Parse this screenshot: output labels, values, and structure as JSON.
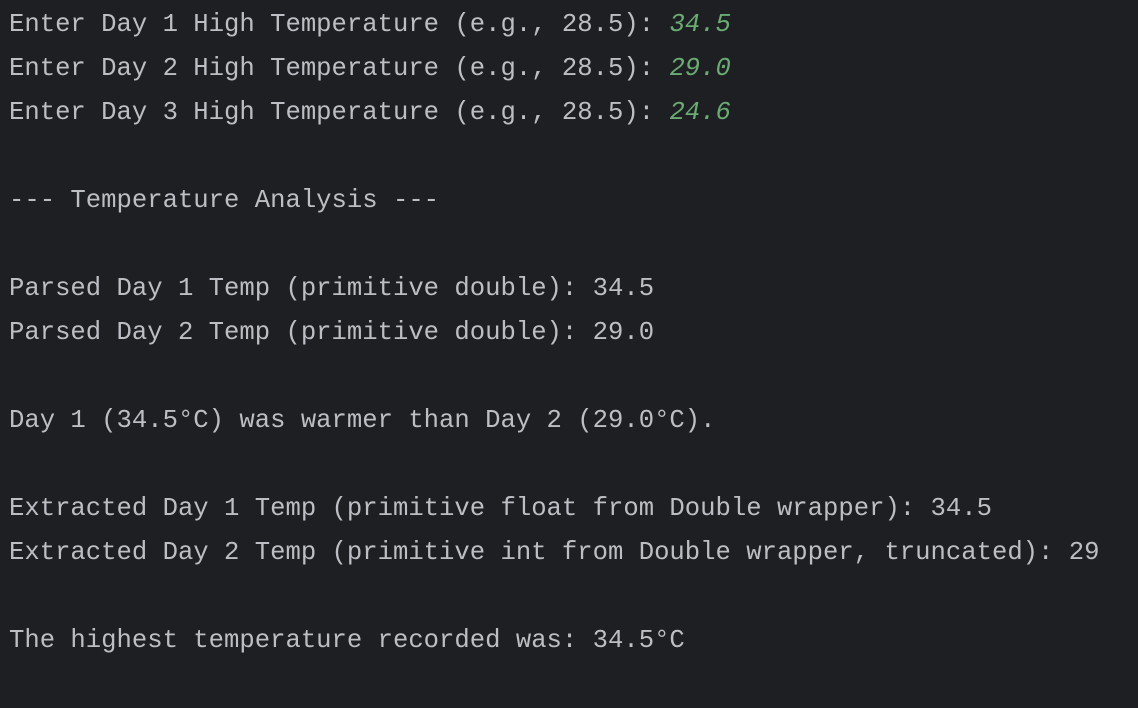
{
  "console": {
    "blocks": [
      [
        {
          "prompt": "Enter Day 1 High Temperature (e.g., 28.5):",
          "input": "34.5"
        },
        {
          "prompt": "Enter Day 2 High Temperature (e.g., 28.5):",
          "input": "29.0"
        },
        {
          "prompt": "Enter Day 3 High Temperature (e.g., 28.5):",
          "input": "24.6"
        }
      ],
      [
        {
          "text": "--- Temperature Analysis ---"
        }
      ],
      [
        {
          "text": "Parsed Day 1 Temp (primitive double): 34.5"
        },
        {
          "text": "Parsed Day 2 Temp (primitive double): 29.0"
        }
      ],
      [
        {
          "text": "Day 1 (34.5°C) was warmer than Day 2 (29.0°C)."
        }
      ],
      [
        {
          "text": "Extracted Day 1 Temp (primitive float from Double wrapper): 34.5"
        },
        {
          "text": "Extracted Day 2 Temp (primitive int from Double wrapper, truncated): 29"
        }
      ],
      [
        {
          "text": "The highest temperature recorded was: 34.5°C"
        }
      ]
    ]
  }
}
